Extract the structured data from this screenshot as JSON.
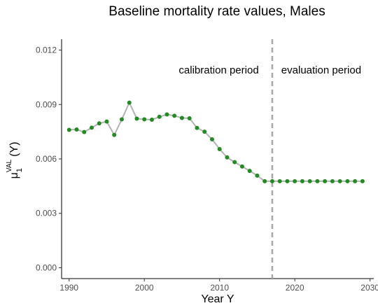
{
  "chart_data": {
    "type": "line",
    "title": "Baseline mortality rate values, Males",
    "xlabel": "Year Y",
    "ylabel": {
      "base": "μ",
      "sub": "1",
      "sup": "VAL",
      "suffix": "(Y)"
    },
    "xlim": [
      1989,
      2030.5
    ],
    "ylim": [
      -0.0006,
      0.0126
    ],
    "x_ticks": [
      1990,
      2000,
      2010,
      2020,
      2030
    ],
    "x_tick_labels": [
      "1990",
      "2000",
      "2010",
      "2020",
      "2030"
    ],
    "y_ticks": [
      0,
      0.003,
      0.006,
      0.009,
      0.012
    ],
    "y_tick_labels": [
      "0.000",
      "0.003",
      "0.006",
      "0.009",
      "0.012"
    ],
    "grid": false,
    "vline": {
      "x": 2017,
      "style": "dashed",
      "color": "#a6a6a6"
    },
    "annotations": [
      {
        "text": "calibration period",
        "x": 2010,
        "y": 0.0109,
        "anchor": "end"
      },
      {
        "text": "evaluation period",
        "x": 2018.2,
        "y": 0.0109,
        "anchor": "start"
      }
    ],
    "line_color": "#b3b3b3",
    "point_color": "#228b22",
    "series": [
      {
        "x": [
          1990,
          1991,
          1992,
          1993,
          1994,
          1995,
          1996,
          1997,
          1998,
          1999,
          2000,
          2001,
          2002,
          2003,
          2004,
          2005,
          2006,
          2007,
          2008,
          2009,
          2010,
          2011,
          2012,
          2013,
          2014,
          2015,
          2016,
          2017,
          2018,
          2019,
          2020,
          2021,
          2022,
          2023,
          2024,
          2025,
          2026,
          2027,
          2028,
          2029
        ],
        "values": [
          0.0076,
          0.00762,
          0.00748,
          0.00772,
          0.00796,
          0.00806,
          0.00732,
          0.00818,
          0.0091,
          0.00822,
          0.00818,
          0.00816,
          0.00832,
          0.00845,
          0.00838,
          0.00826,
          0.00824,
          0.00771,
          0.0075,
          0.00708,
          0.00654,
          0.00608,
          0.00582,
          0.00558,
          0.00534,
          0.00508,
          0.00477,
          0.00477,
          0.00477,
          0.00477,
          0.00477,
          0.00477,
          0.00477,
          0.00477,
          0.00477,
          0.00477,
          0.00477,
          0.00477,
          0.00477,
          0.00477
        ]
      }
    ]
  }
}
